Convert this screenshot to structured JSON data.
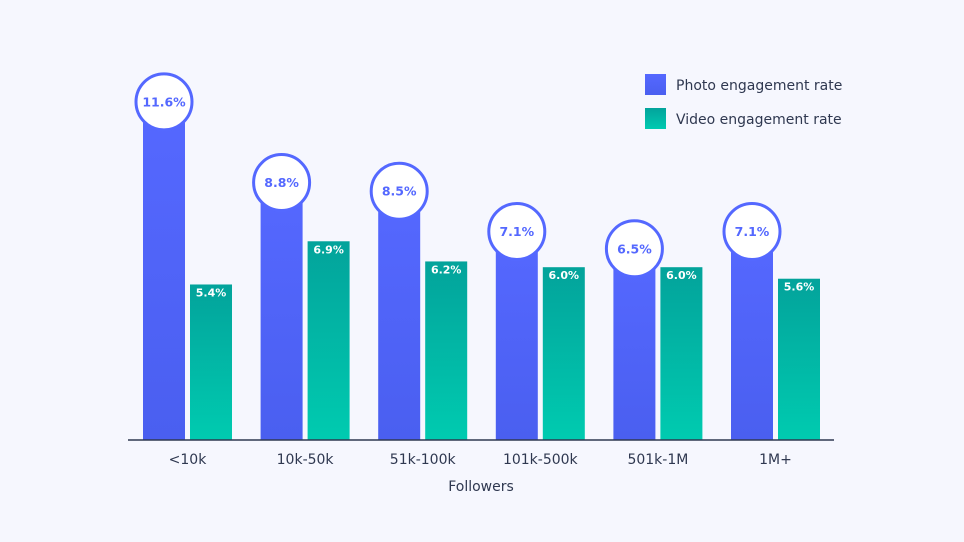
{
  "chart_data": {
    "type": "bar",
    "title": "",
    "xlabel": "Followers",
    "ylabel": "",
    "ylim": [
      0,
      13
    ],
    "grid": false,
    "legend_placement": "top-right",
    "categories": [
      "<10k",
      "10k-50k",
      "51k-100k",
      "101k-500k",
      "501k-1M",
      "1M+"
    ],
    "series": [
      {
        "name": "Photo engagement rate",
        "values": [
          11.6,
          8.8,
          8.5,
          7.1,
          6.5,
          7.1
        ],
        "labels": [
          "11.6%",
          "8.8%",
          "8.5%",
          "7.1%",
          "6.5%",
          "7.1%"
        ],
        "color": "#5468ff"
      },
      {
        "name": "Video engagement rate",
        "values": [
          5.4,
          6.9,
          6.2,
          6.0,
          6.0,
          5.6
        ],
        "labels": [
          "5.4%",
          "6.9%",
          "6.2%",
          "6.0%",
          "6.0%",
          "5.6%"
        ],
        "color": "#00a99d"
      }
    ]
  }
}
